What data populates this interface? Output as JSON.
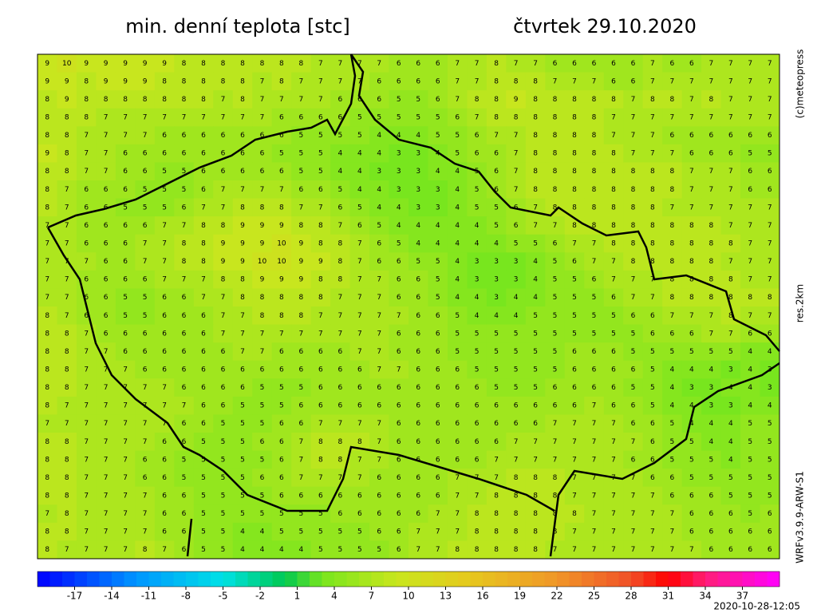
{
  "header": {
    "title": "min. denní teplota [stc]",
    "date": "čtvrtek 29.10.2020"
  },
  "side_labels": {
    "copyright": "(c)meteopress",
    "resolution": "res.2km",
    "model": "WRFv3.9.9-ARW-S1"
  },
  "timestamp": "2020-10-28-12:05",
  "colorbar": {
    "lim": [
      -20,
      40
    ],
    "ticks": [
      -17,
      -14,
      -11,
      -8,
      -5,
      -2,
      1,
      4,
      7,
      10,
      13,
      16,
      19,
      22,
      25,
      28,
      31,
      34,
      37
    ]
  },
  "grid": [
    [
      9,
      10,
      9,
      9,
      9,
      9,
      9,
      8,
      8,
      8,
      8,
      8,
      8,
      8,
      7,
      7,
      7,
      7,
      6,
      6,
      6,
      7,
      7,
      8,
      7,
      7,
      6,
      6,
      6,
      6,
      6,
      7,
      6,
      6,
      7,
      7,
      7,
      7
    ],
    [
      9,
      9,
      8,
      9,
      9,
      9,
      8,
      8,
      8,
      8,
      8,
      7,
      8,
      7,
      7,
      7,
      7,
      6,
      6,
      6,
      6,
      7,
      7,
      8,
      8,
      8,
      7,
      7,
      7,
      6,
      6,
      7,
      7,
      7,
      7,
      7,
      7,
      7
    ],
    [
      8,
      9,
      8,
      8,
      8,
      8,
      8,
      8,
      8,
      7,
      8,
      7,
      7,
      7,
      7,
      6,
      6,
      6,
      5,
      5,
      6,
      7,
      8,
      8,
      9,
      8,
      8,
      8,
      8,
      8,
      7,
      8,
      8,
      7,
      8,
      7,
      7,
      7
    ],
    [
      8,
      8,
      8,
      7,
      7,
      7,
      7,
      7,
      7,
      7,
      7,
      7,
      6,
      6,
      6,
      6,
      5,
      5,
      5,
      5,
      5,
      6,
      7,
      8,
      8,
      8,
      8,
      8,
      8,
      7,
      7,
      7,
      7,
      7,
      7,
      7,
      7,
      7
    ],
    [
      8,
      8,
      7,
      7,
      7,
      7,
      6,
      6,
      6,
      6,
      6,
      6,
      6,
      5,
      5,
      5,
      5,
      4,
      4,
      4,
      5,
      5,
      6,
      7,
      7,
      8,
      8,
      8,
      8,
      7,
      7,
      7,
      6,
      6,
      6,
      6,
      6,
      6
    ],
    [
      9,
      8,
      7,
      7,
      6,
      6,
      6,
      6,
      6,
      6,
      6,
      6,
      5,
      5,
      5,
      4,
      4,
      4,
      3,
      3,
      4,
      5,
      6,
      6,
      7,
      8,
      8,
      8,
      8,
      8,
      7,
      7,
      7,
      6,
      6,
      6,
      5,
      5
    ],
    [
      8,
      8,
      7,
      7,
      6,
      6,
      5,
      5,
      6,
      6,
      6,
      6,
      6,
      5,
      5,
      4,
      4,
      3,
      3,
      3,
      4,
      4,
      5,
      6,
      7,
      8,
      8,
      8,
      8,
      8,
      8,
      8,
      8,
      7,
      7,
      7,
      6,
      6
    ],
    [
      8,
      7,
      6,
      6,
      6,
      5,
      5,
      5,
      6,
      7,
      7,
      7,
      7,
      6,
      6,
      5,
      4,
      4,
      3,
      3,
      3,
      4,
      5,
      6,
      7,
      8,
      8,
      8,
      8,
      8,
      8,
      8,
      8,
      7,
      7,
      7,
      6,
      6
    ],
    [
      8,
      7,
      6,
      6,
      5,
      5,
      5,
      6,
      7,
      7,
      8,
      8,
      8,
      7,
      7,
      6,
      5,
      4,
      4,
      3,
      3,
      4,
      5,
      5,
      6,
      7,
      8,
      8,
      8,
      8,
      8,
      8,
      7,
      7,
      7,
      7,
      7,
      7
    ],
    [
      7,
      7,
      6,
      6,
      6,
      6,
      7,
      7,
      8,
      8,
      9,
      9,
      9,
      8,
      8,
      7,
      6,
      5,
      4,
      4,
      4,
      4,
      4,
      5,
      6,
      7,
      7,
      8,
      8,
      8,
      8,
      8,
      8,
      8,
      8,
      7,
      7,
      7
    ],
    [
      7,
      7,
      6,
      6,
      6,
      7,
      7,
      8,
      8,
      9,
      9,
      9,
      10,
      9,
      8,
      8,
      7,
      6,
      5,
      4,
      4,
      4,
      4,
      4,
      5,
      5,
      6,
      7,
      7,
      8,
      8,
      8,
      8,
      8,
      8,
      8,
      7,
      7
    ],
    [
      7,
      7,
      7,
      6,
      6,
      7,
      7,
      8,
      8,
      9,
      9,
      10,
      10,
      9,
      9,
      8,
      7,
      6,
      6,
      5,
      5,
      4,
      3,
      3,
      3,
      4,
      5,
      6,
      7,
      7,
      8,
      8,
      8,
      8,
      8,
      7,
      7,
      7
    ],
    [
      7,
      7,
      6,
      6,
      6,
      6,
      7,
      7,
      7,
      8,
      8,
      9,
      9,
      9,
      8,
      8,
      7,
      7,
      6,
      6,
      5,
      4,
      3,
      3,
      3,
      4,
      5,
      5,
      6,
      7,
      7,
      7,
      8,
      8,
      8,
      8,
      7,
      7
    ],
    [
      7,
      7,
      6,
      6,
      5,
      5,
      6,
      6,
      7,
      7,
      8,
      8,
      8,
      8,
      8,
      7,
      7,
      7,
      6,
      6,
      5,
      4,
      4,
      3,
      4,
      4,
      5,
      5,
      5,
      6,
      7,
      7,
      8,
      8,
      8,
      8,
      8,
      8
    ],
    [
      8,
      7,
      6,
      6,
      5,
      5,
      6,
      6,
      6,
      7,
      7,
      8,
      8,
      8,
      7,
      7,
      7,
      7,
      7,
      6,
      6,
      5,
      4,
      4,
      4,
      5,
      5,
      5,
      5,
      5,
      6,
      6,
      7,
      7,
      7,
      8,
      7,
      7
    ],
    [
      8,
      8,
      7,
      6,
      6,
      6,
      6,
      6,
      6,
      7,
      7,
      7,
      7,
      7,
      7,
      7,
      7,
      7,
      6,
      6,
      6,
      5,
      5,
      5,
      5,
      5,
      5,
      5,
      5,
      5,
      5,
      6,
      6,
      6,
      7,
      7,
      6,
      6
    ],
    [
      8,
      8,
      7,
      7,
      6,
      6,
      6,
      6,
      6,
      6,
      7,
      7,
      6,
      6,
      6,
      6,
      7,
      7,
      6,
      6,
      6,
      5,
      5,
      5,
      5,
      5,
      5,
      6,
      6,
      6,
      5,
      5,
      5,
      5,
      5,
      5,
      4,
      4
    ],
    [
      8,
      8,
      7,
      7,
      7,
      6,
      6,
      6,
      6,
      6,
      6,
      6,
      6,
      6,
      6,
      6,
      6,
      7,
      7,
      6,
      6,
      6,
      5,
      5,
      5,
      5,
      5,
      6,
      6,
      6,
      6,
      5,
      4,
      4,
      4,
      3,
      4,
      3
    ],
    [
      8,
      8,
      7,
      7,
      7,
      7,
      7,
      6,
      6,
      6,
      6,
      5,
      5,
      5,
      6,
      6,
      6,
      6,
      6,
      6,
      6,
      6,
      6,
      5,
      5,
      5,
      6,
      6,
      6,
      6,
      5,
      5,
      4,
      3,
      3,
      4,
      4,
      3
    ],
    [
      8,
      7,
      7,
      7,
      7,
      7,
      7,
      7,
      6,
      6,
      5,
      5,
      5,
      6,
      6,
      6,
      6,
      6,
      6,
      6,
      6,
      6,
      6,
      6,
      6,
      6,
      6,
      6,
      7,
      6,
      6,
      5,
      4,
      4,
      3,
      3,
      4,
      4
    ],
    [
      7,
      7,
      7,
      7,
      7,
      7,
      7,
      6,
      6,
      5,
      5,
      5,
      6,
      6,
      7,
      7,
      7,
      7,
      6,
      6,
      6,
      6,
      6,
      6,
      6,
      6,
      7,
      7,
      7,
      7,
      6,
      6,
      5,
      4,
      4,
      4,
      5,
      5
    ],
    [
      8,
      8,
      7,
      7,
      7,
      7,
      6,
      6,
      5,
      5,
      5,
      6,
      6,
      7,
      8,
      8,
      8,
      7,
      6,
      6,
      6,
      6,
      6,
      6,
      7,
      7,
      7,
      7,
      7,
      7,
      7,
      6,
      5,
      5,
      4,
      4,
      5,
      5
    ],
    [
      8,
      8,
      7,
      7,
      7,
      6,
      6,
      5,
      5,
      5,
      5,
      5,
      6,
      7,
      8,
      8,
      7,
      7,
      6,
      6,
      6,
      6,
      6,
      7,
      7,
      7,
      7,
      7,
      7,
      7,
      6,
      6,
      5,
      5,
      5,
      4,
      5,
      5
    ],
    [
      8,
      8,
      7,
      7,
      7,
      6,
      6,
      5,
      5,
      5,
      5,
      6,
      6,
      7,
      7,
      7,
      7,
      6,
      6,
      6,
      6,
      7,
      7,
      7,
      8,
      8,
      8,
      7,
      7,
      7,
      7,
      6,
      6,
      5,
      5,
      5,
      5,
      5
    ],
    [
      8,
      8,
      7,
      7,
      7,
      7,
      6,
      6,
      5,
      5,
      5,
      5,
      6,
      6,
      6,
      6,
      6,
      6,
      6,
      6,
      6,
      7,
      7,
      8,
      8,
      8,
      8,
      7,
      7,
      7,
      7,
      7,
      6,
      6,
      6,
      5,
      5,
      5
    ],
    [
      7,
      8,
      7,
      7,
      7,
      7,
      6,
      6,
      5,
      5,
      5,
      5,
      5,
      5,
      5,
      6,
      6,
      6,
      6,
      6,
      7,
      7,
      8,
      8,
      8,
      8,
      8,
      8,
      7,
      7,
      7,
      7,
      7,
      6,
      6,
      6,
      5,
      6
    ],
    [
      8,
      8,
      7,
      7,
      7,
      7,
      6,
      6,
      5,
      5,
      4,
      4,
      5,
      5,
      5,
      5,
      5,
      6,
      6,
      7,
      7,
      7,
      8,
      8,
      8,
      8,
      8,
      7,
      7,
      7,
      7,
      7,
      7,
      6,
      6,
      6,
      6,
      6
    ],
    [
      8,
      7,
      7,
      7,
      7,
      8,
      7,
      6,
      5,
      5,
      4,
      4,
      4,
      4,
      5,
      5,
      5,
      5,
      6,
      7,
      7,
      8,
      8,
      8,
      8,
      8,
      7,
      7,
      7,
      7,
      7,
      7,
      7,
      7,
      6,
      6,
      6,
      6
    ]
  ]
}
